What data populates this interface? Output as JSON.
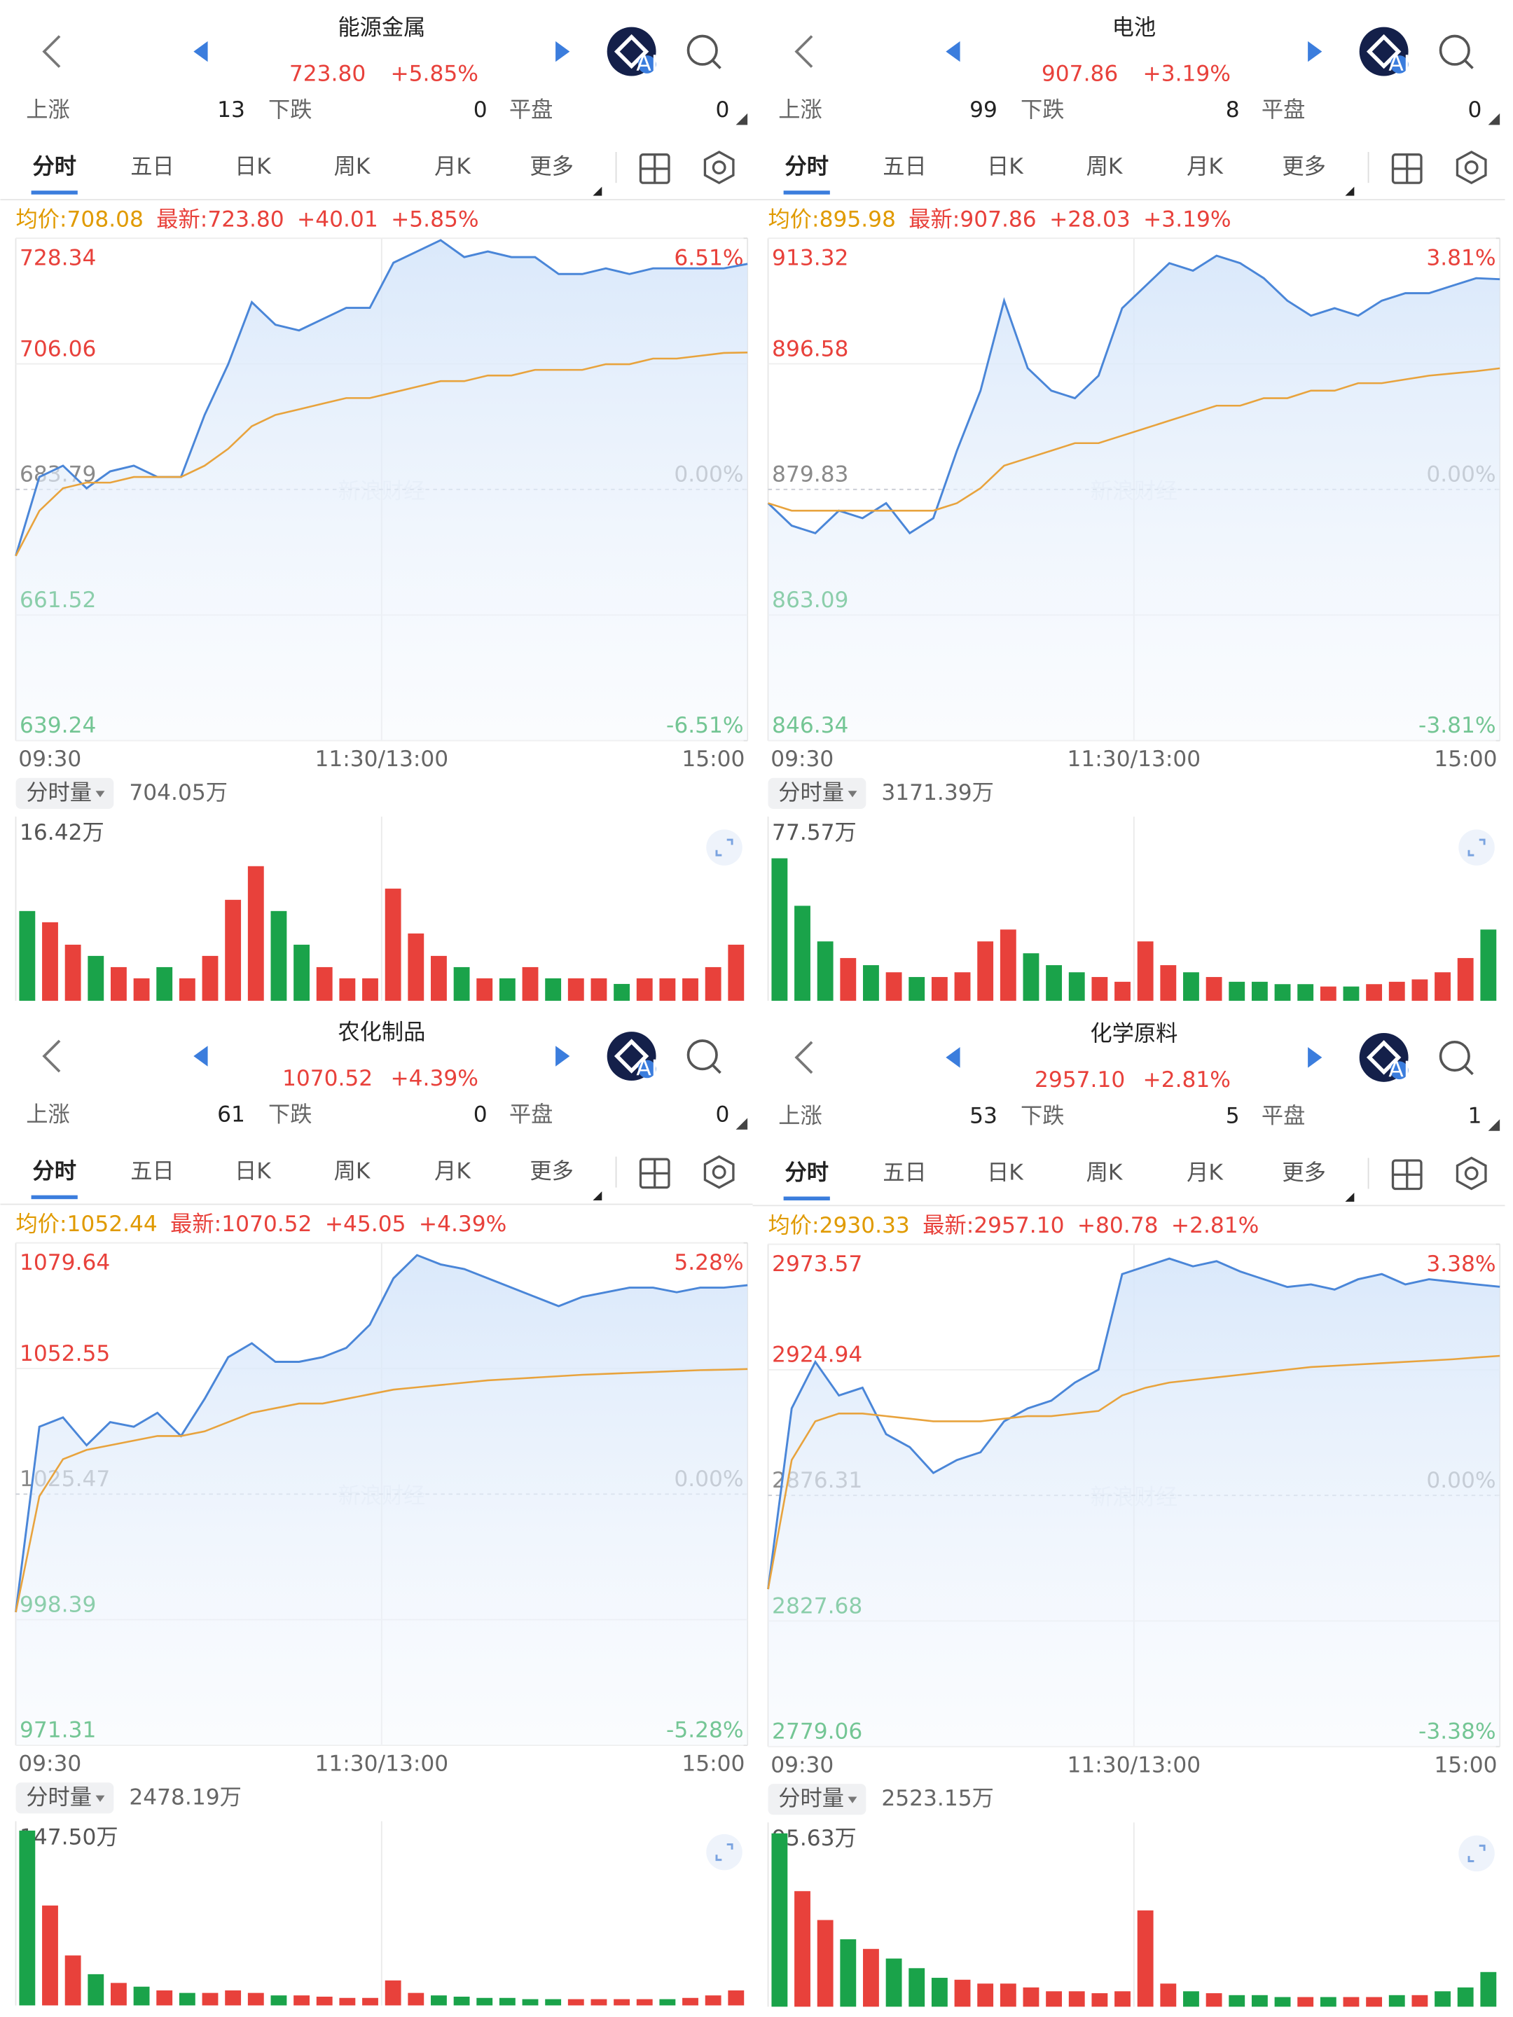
{
  "panels": [
    {
      "header": {
        "title": "能源金属",
        "price": "723.80",
        "change": "+5.85%",
        "badge": "AI"
      },
      "stats": {
        "up_label": "上涨",
        "up": "13",
        "down_label": "下跌",
        "down": "0",
        "flat_label": "平盘",
        "flat": "0"
      },
      "tabs": [
        "分时",
        "五日",
        "日K",
        "周K",
        "月K",
        "更多"
      ],
      "info": [
        "均价:708.08",
        "最新:723.80",
        "+40.01",
        "+5.85%"
      ],
      "watermark": "新浪财经",
      "chart_data": {
        "type": "line",
        "ylim": [
          639.24,
          728.34
        ],
        "yticks": [
          728.34,
          706.06,
          683.79,
          661.52,
          639.24
        ],
        "y2lim": [
          -6.51,
          6.51
        ],
        "y2ticks": [
          {
            "value": 6.51,
            "label": "6.51%"
          },
          {
            "value": 0,
            "label": "0.00%"
          },
          {
            "value": -6.51,
            "label": "-6.51%"
          }
        ],
        "xticks": [
          "09:30",
          "11:30/13:00",
          "15:00"
        ],
        "grid": true,
        "series": [
          {
            "color": "#4a86d8",
            "values": [
              672,
              686,
              688,
              684,
              687,
              688,
              686,
              686,
              697,
              706,
              717,
              713,
              712,
              714,
              716,
              716,
              724,
              726,
              728,
              725,
              726,
              725,
              725,
              722,
              722,
              723,
              722,
              723,
              723,
              723,
              723,
              723.8
            ]
          },
          {
            "color": "#e8a33d",
            "values": [
              672,
              680,
              684,
              685,
              685,
              686,
              686,
              686,
              688,
              691,
              695,
              697,
              698,
              699,
              700,
              700,
              701,
              702,
              703,
              703,
              704,
              704,
              705,
              705,
              705,
              706,
              706,
              707,
              707,
              707.5,
              708,
              708.08
            ]
          }
        ]
      },
      "volume": {
        "type": "bar",
        "selector": "分时量",
        "total": "704.05万",
        "ylim": [
          0,
          16.42
        ],
        "yticks": [
          {
            "value": 16.42,
            "label": "16.42万"
          }
        ],
        "up_color": "#e8413b",
        "down_color": "#1aa34a",
        "values": [
          8,
          7,
          5,
          4,
          3,
          2,
          3,
          2,
          4,
          9,
          12,
          8,
          5,
          3,
          2,
          2,
          10,
          6,
          4,
          3,
          2,
          2,
          3,
          2,
          2,
          2,
          1.5,
          2,
          2,
          2,
          3,
          5
        ]
      }
    },
    {
      "header": {
        "title": "电池",
        "price": "907.86",
        "change": "+3.19%",
        "badge": "AI"
      },
      "stats": {
        "up_label": "上涨",
        "up": "99",
        "down_label": "下跌",
        "down": "8",
        "flat_label": "平盘",
        "flat": "0"
      },
      "tabs": [
        "分时",
        "五日",
        "日K",
        "周K",
        "月K",
        "更多"
      ],
      "info": [
        "均价:895.98",
        "最新:907.86",
        "+28.03",
        "+3.19%"
      ],
      "watermark": "新浪财经",
      "chart_data": {
        "type": "line",
        "ylim": [
          846.34,
          913.32
        ],
        "yticks": [
          913.32,
          896.58,
          879.83,
          863.09,
          846.34
        ],
        "y2lim": [
          -3.81,
          3.81
        ],
        "y2ticks": [
          {
            "value": 3.81,
            "label": "3.81%"
          },
          {
            "value": 0,
            "label": "0.00%"
          },
          {
            "value": -3.81,
            "label": "-3.81%"
          }
        ],
        "xticks": [
          "09:30",
          "11:30/13:00",
          "15:00"
        ],
        "grid": true,
        "series": [
          {
            "color": "#4a86d8",
            "values": [
              878,
              875,
              874,
              877,
              876,
              878,
              874,
              876,
              885,
              893,
              905,
              896,
              893,
              892,
              895,
              904,
              907,
              910,
              909,
              911,
              910,
              908,
              905,
              903,
              904,
              903,
              905,
              906,
              906,
              907,
              908,
              907.86
            ]
          },
          {
            "color": "#e8a33d",
            "values": [
              878,
              877,
              877,
              877,
              877,
              877,
              877,
              877,
              878,
              880,
              883,
              884,
              885,
              886,
              886,
              887,
              888,
              889,
              890,
              891,
              891,
              892,
              892,
              893,
              893,
              894,
              894,
              894.5,
              895,
              895.3,
              895.6,
              895.98
            ]
          }
        ]
      },
      "volume": {
        "type": "bar",
        "selector": "分时量",
        "total": "3171.39万",
        "ylim": [
          0,
          77.57
        ],
        "yticks": [
          {
            "value": 77.57,
            "label": "77.57万"
          }
        ],
        "up_color": "#e8413b",
        "down_color": "#1aa34a",
        "values": [
          60,
          40,
          25,
          18,
          15,
          12,
          10,
          10,
          12,
          25,
          30,
          20,
          15,
          12,
          10,
          8,
          25,
          15,
          12,
          10,
          8,
          8,
          7,
          7,
          6,
          6,
          7,
          8,
          9,
          12,
          18,
          30
        ]
      }
    },
    {
      "header": {
        "title": "农化制品",
        "price": "1070.52",
        "change": "+4.39%",
        "badge": "AI"
      },
      "stats": {
        "up_label": "上涨",
        "up": "61",
        "down_label": "下跌",
        "down": "0",
        "flat_label": "平盘",
        "flat": "0"
      },
      "tabs": [
        "分时",
        "五日",
        "日K",
        "周K",
        "月K",
        "更多"
      ],
      "info": [
        "均价:1052.44",
        "最新:1070.52",
        "+45.05",
        "+4.39%"
      ],
      "watermark": "新浪财经",
      "chart_data": {
        "type": "line",
        "ylim": [
          971.31,
          1079.64
        ],
        "yticks": [
          1079.64,
          1052.55,
          1025.47,
          998.39,
          971.31
        ],
        "y2lim": [
          -5.28,
          5.28
        ],
        "y2ticks": [
          {
            "value": 5.28,
            "label": "5.28%"
          },
          {
            "value": 0,
            "label": "0.00%"
          },
          {
            "value": -5.28,
            "label": "-5.28%"
          }
        ],
        "xticks": [
          "09:30",
          "11:30/13:00",
          "15:00"
        ],
        "grid": true,
        "series": [
          {
            "color": "#4a86d8",
            "values": [
              1000,
              1040,
              1042,
              1036,
              1041,
              1040,
              1043,
              1038,
              1046,
              1055,
              1058,
              1054,
              1054,
              1055,
              1057,
              1062,
              1072,
              1077,
              1075,
              1074,
              1072,
              1070,
              1068,
              1066,
              1068,
              1069,
              1070,
              1070,
              1069,
              1070,
              1070,
              1070.52
            ]
          },
          {
            "color": "#e8a33d",
            "values": [
              1000,
              1025,
              1033,
              1035,
              1036,
              1037,
              1038,
              1038,
              1039,
              1041,
              1043,
              1044,
              1045,
              1045,
              1046,
              1047,
              1048,
              1048.5,
              1049,
              1049.5,
              1050,
              1050.3,
              1050.6,
              1050.9,
              1051.2,
              1051.4,
              1051.6,
              1051.8,
              1052,
              1052.2,
              1052.3,
              1052.44
            ]
          }
        ]
      },
      "volume": {
        "type": "bar",
        "selector": "分时量",
        "total": "2478.19万",
        "ylim": [
          0,
          147.5
        ],
        "yticks": [
          {
            "value": 147.5,
            "label": "147.50万"
          }
        ],
        "up_color": "#e8413b",
        "down_color": "#1aa34a",
        "values": [
          140,
          80,
          40,
          25,
          18,
          15,
          12,
          10,
          10,
          12,
          10,
          8,
          8,
          7,
          6,
          6,
          20,
          10,
          8,
          7,
          6,
          6,
          5,
          5,
          5,
          5,
          5,
          5,
          5,
          6,
          8,
          12
        ]
      }
    },
    {
      "header": {
        "title": "化学原料",
        "price": "2957.10",
        "change": "+2.81%",
        "badge": "AI"
      },
      "stats": {
        "up_label": "上涨",
        "up": "53",
        "down_label": "下跌",
        "down": "5",
        "flat_label": "平盘",
        "flat": "1"
      },
      "tabs": [
        "分时",
        "五日",
        "日K",
        "周K",
        "月K",
        "更多"
      ],
      "info": [
        "均价:2930.33",
        "最新:2957.10",
        "+80.78",
        "+2.81%"
      ],
      "watermark": "新浪财经",
      "chart_data": {
        "type": "line",
        "ylim": [
          2779.06,
          2973.57
        ],
        "yticks": [
          2973.57,
          2924.94,
          2876.31,
          2827.68,
          2779.06
        ],
        "y2lim": [
          -3.38,
          3.38
        ],
        "y2ticks": [
          {
            "value": 3.38,
            "label": "3.38%"
          },
          {
            "value": 0,
            "label": "0.00%"
          },
          {
            "value": -3.38,
            "label": "-3.38%"
          }
        ],
        "xticks": [
          "09:30",
          "11:30/13:00",
          "15:00"
        ],
        "grid": true,
        "series": [
          {
            "color": "#4a86d8",
            "values": [
              2840,
              2910,
              2928,
              2915,
              2918,
              2900,
              2895,
              2885,
              2890,
              2893,
              2905,
              2910,
              2913,
              2920,
              2925,
              2962,
              2965,
              2968,
              2965,
              2967,
              2963,
              2960,
              2957,
              2958,
              2956,
              2960,
              2962,
              2958,
              2960,
              2959,
              2958,
              2957.1
            ]
          },
          {
            "color": "#e8a33d",
            "values": [
              2840,
              2890,
              2905,
              2908,
              2908,
              2907,
              2906,
              2905,
              2905,
              2905,
              2906,
              2907,
              2907,
              2908,
              2909,
              2915,
              2918,
              2920,
              2921,
              2922,
              2923,
              2924,
              2925,
              2926,
              2926.5,
              2927,
              2927.5,
              2928,
              2928.5,
              2929,
              2929.7,
              2930.33
            ]
          }
        ]
      },
      "volume": {
        "type": "bar",
        "selector": "分时量",
        "total": "2523.15万",
        "ylim": [
          0,
          95.63
        ],
        "yticks": [
          {
            "value": 95.63,
            "label": "95.63万"
          }
        ],
        "up_color": "#e8413b",
        "down_color": "#1aa34a",
        "values": [
          90,
          60,
          45,
          35,
          30,
          25,
          20,
          15,
          14,
          12,
          12,
          10,
          8,
          8,
          7,
          8,
          50,
          12,
          8,
          7,
          6,
          6,
          5,
          5,
          5,
          5,
          5,
          6,
          6,
          8,
          10,
          18
        ]
      }
    }
  ]
}
